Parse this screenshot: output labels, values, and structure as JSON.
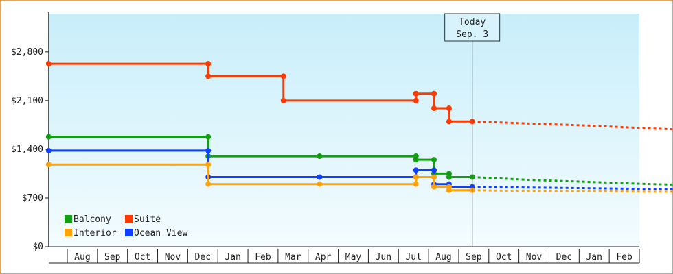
{
  "chart_data": {
    "type": "line",
    "title": "",
    "xlabel": "",
    "ylabel": "",
    "ylim": [
      0,
      3350
    ],
    "y_ticks": [
      0,
      700,
      1400,
      2100,
      2800
    ],
    "y_tick_labels": [
      "$0",
      "$700",
      "$1,400",
      "$2,100",
      "$2,800"
    ],
    "x_range": [
      "2024-07-01",
      "2025-02-28"
    ],
    "x_ticks": [
      "Aug",
      "Sep",
      "Oct",
      "Nov",
      "Dec",
      "Jan",
      "Feb",
      "Mar",
      "Apr",
      "May",
      "Jun",
      "Jul",
      "Aug",
      "Sep",
      "Oct",
      "Nov",
      "Dec",
      "Jan",
      "Feb"
    ],
    "today": {
      "line1": "Today",
      "line2": "Sep. 3",
      "month_index": 14.07
    },
    "legend": {
      "position": "bottom-left"
    },
    "series": [
      {
        "name": "Suite",
        "color": "#ff3a00",
        "step": true,
        "points": [
          [
            0,
            2630
          ],
          [
            5.3,
            2630
          ],
          [
            5.3,
            2450
          ],
          [
            7.8,
            2450
          ],
          [
            7.8,
            2100
          ],
          [
            12.2,
            2100
          ],
          [
            12.2,
            2200
          ],
          [
            12.8,
            2200
          ],
          [
            12.8,
            1990
          ],
          [
            13.3,
            1990
          ],
          [
            13.3,
            1800
          ],
          [
            14.07,
            1800
          ]
        ],
        "forecast": [
          [
            14.07,
            1800
          ],
          [
            16,
            1770
          ],
          [
            18,
            1740
          ],
          [
            20,
            1700
          ],
          [
            22,
            1670
          ],
          [
            23.5,
            1650
          ]
        ]
      },
      {
        "name": "Balcony",
        "color": "#12a012",
        "step": true,
        "points": [
          [
            0,
            1580
          ],
          [
            5.3,
            1580
          ],
          [
            5.3,
            1300
          ],
          [
            9,
            1300
          ],
          [
            12.2,
            1300
          ],
          [
            12.2,
            1250
          ],
          [
            12.8,
            1250
          ],
          [
            12.8,
            1050
          ],
          [
            13.3,
            1050
          ],
          [
            13.3,
            1000
          ],
          [
            14.07,
            1000
          ]
        ],
        "forecast": [
          [
            14.07,
            1000
          ],
          [
            16,
            960
          ],
          [
            18,
            930
          ],
          [
            20,
            900
          ],
          [
            22,
            880
          ],
          [
            23.5,
            870
          ]
        ]
      },
      {
        "name": "Ocean View",
        "color": "#1040ff",
        "step": true,
        "points": [
          [
            0,
            1380
          ],
          [
            5.3,
            1380
          ],
          [
            5.3,
            1000
          ],
          [
            9,
            1000
          ],
          [
            12.2,
            1000
          ],
          [
            12.2,
            1100
          ],
          [
            12.8,
            1100
          ],
          [
            12.8,
            900
          ],
          [
            13.3,
            900
          ],
          [
            13.3,
            860
          ],
          [
            14.07,
            860
          ]
        ],
        "forecast": [
          [
            14.07,
            860
          ],
          [
            16,
            850
          ],
          [
            18,
            840
          ],
          [
            20,
            830
          ],
          [
            22,
            830
          ],
          [
            23.5,
            830
          ]
        ]
      },
      {
        "name": "Interior",
        "color": "#ffa30a",
        "step": true,
        "points": [
          [
            0,
            1180
          ],
          [
            5.3,
            1180
          ],
          [
            5.3,
            900
          ],
          [
            9,
            900
          ],
          [
            12.2,
            900
          ],
          [
            12.2,
            1000
          ],
          [
            12.8,
            1000
          ],
          [
            12.8,
            860
          ],
          [
            13.3,
            860
          ],
          [
            13.3,
            810
          ],
          [
            14.07,
            810
          ]
        ],
        "forecast": [
          [
            14.07,
            810
          ],
          [
            16,
            800
          ],
          [
            18,
            800
          ],
          [
            20,
            790
          ],
          [
            22,
            790
          ],
          [
            23.5,
            790
          ]
        ]
      }
    ]
  }
}
